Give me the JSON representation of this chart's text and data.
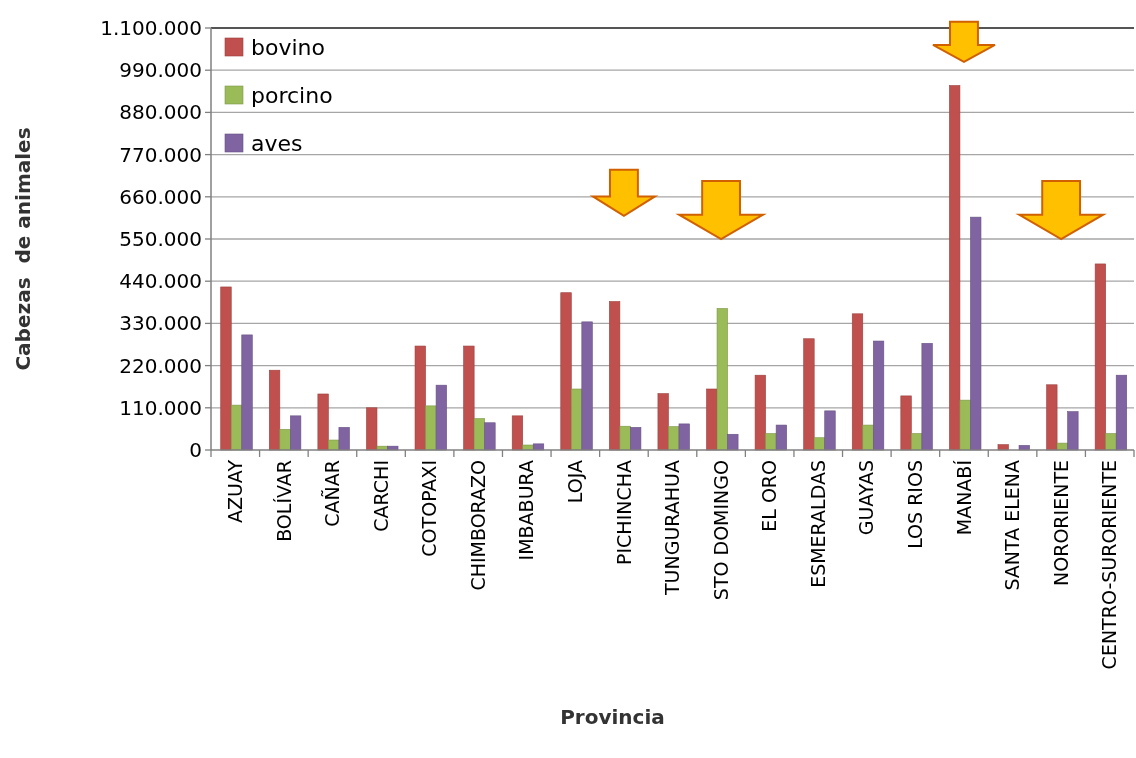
{
  "chart_data": {
    "type": "bar",
    "xlabel": "Provincia",
    "ylabel": "Cabezas  de animales",
    "categories": [
      "AZUAY",
      "BOLÍVAR",
      "CAÑAR",
      "CARCHI",
      "COTOPAXI",
      "CHIMBORAZO",
      "IMBABURA",
      "LOJA",
      "PICHINCHA",
      "TUNGURAHUA",
      "STO DOMINGO",
      "EL ORO",
      "ESMERALDAS",
      "GUAYAS",
      "LOS RIOS",
      "MANABÍ",
      "SANTA ELENA",
      "NORORIENTE",
      "CENTRO-SURORIENTE"
    ],
    "series": [
      {
        "name": "bovino",
        "color": "#c0504d",
        "values": [
          425000,
          208000,
          146000,
          110000,
          271000,
          271000,
          89000,
          410000,
          387000,
          147000,
          159000,
          195000,
          290000,
          355000,
          141000,
          950000,
          14000,
          170000,
          485000
        ]
      },
      {
        "name": "porcino",
        "color": "#9bbb59",
        "values": [
          117000,
          54000,
          26000,
          10000,
          115000,
          82000,
          13000,
          159000,
          62000,
          61000,
          369000,
          43000,
          32000,
          65000,
          43000,
          130000,
          0,
          18000,
          43000
        ]
      },
      {
        "name": "aves",
        "color": "#8064a2",
        "values": [
          300000,
          89000,
          59000,
          10000,
          169000,
          71000,
          16000,
          334000,
          59000,
          68000,
          41000,
          65000,
          102000,
          284000,
          278000,
          607000,
          12000,
          100000,
          195000
        ]
      }
    ],
    "ylim": [
      0,
      1100000
    ],
    "yticks": [
      0,
      {
        "value": 110000,
        "label": "110.000"
      },
      {
        "value": 220000,
        "label": "220.000"
      },
      {
        "value": 330000,
        "label": "330.000"
      },
      {
        "value": 440000,
        "label": "440.000"
      },
      {
        "value": 550000,
        "label": "550.000"
      },
      {
        "value": 660000,
        "label": "660.000"
      },
      {
        "value": 770000,
        "label": "770.000"
      },
      {
        "value": 880000,
        "label": "880.000"
      },
      {
        "value": 990000,
        "label": "990.000"
      },
      {
        "value": 1100000,
        "label": "1.100.000"
      }
    ],
    "grid": "y",
    "legend": "top left"
  }
}
